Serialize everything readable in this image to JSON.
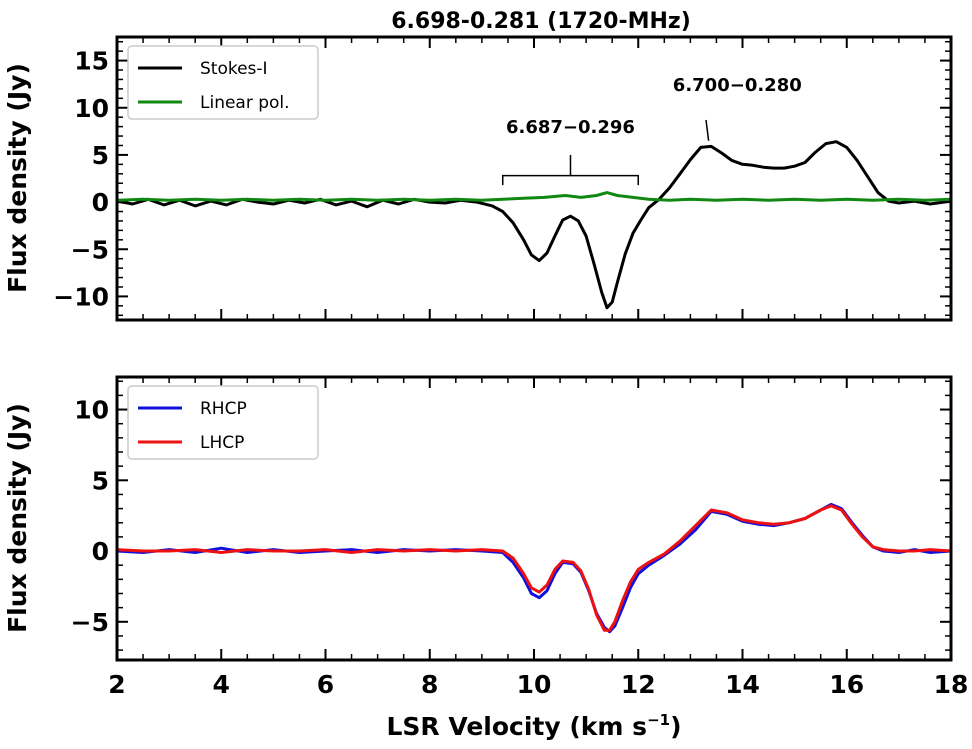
{
  "figure": {
    "title": "6.698-0.281 (1720-MHz)",
    "xlabel": "LSR Velocity (km s",
    "xlabel_sup": "−1",
    "xlabel_end": ")"
  },
  "chart_data": [
    {
      "type": "line",
      "panel": "top",
      "ylabel": "Flux density (Jy)",
      "xlim": [
        2,
        18
      ],
      "ylim": [
        -12.5,
        17.5
      ],
      "xticks": [
        2,
        4,
        6,
        8,
        10,
        12,
        14,
        16,
        18
      ],
      "yticks": [
        -10,
        -5,
        0,
        5,
        10,
        15
      ],
      "ytick_labels": [
        "−10",
        "−5",
        "0",
        "5",
        "10",
        "15"
      ],
      "legend": "top-left",
      "series": [
        {
          "name": "Stokes-I",
          "color": "#000000",
          "x": [
            2.0,
            2.3,
            2.6,
            2.9,
            3.2,
            3.5,
            3.8,
            4.1,
            4.4,
            4.7,
            5.0,
            5.3,
            5.6,
            5.9,
            6.2,
            6.5,
            6.8,
            7.1,
            7.4,
            7.7,
            8.0,
            8.3,
            8.6,
            8.9,
            9.2,
            9.4,
            9.6,
            9.8,
            9.95,
            10.1,
            10.25,
            10.4,
            10.55,
            10.7,
            10.85,
            11.0,
            11.15,
            11.3,
            11.4,
            11.5,
            11.6,
            11.75,
            11.9,
            12.05,
            12.2,
            12.4,
            12.6,
            12.8,
            13.0,
            13.2,
            13.4,
            13.6,
            13.8,
            14.0,
            14.2,
            14.4,
            14.6,
            14.8,
            15.0,
            15.2,
            15.4,
            15.6,
            15.8,
            16.0,
            16.2,
            16.4,
            16.6,
            16.8,
            17.0,
            17.3,
            17.6,
            18.0
          ],
          "y": [
            0.1,
            -0.2,
            0.3,
            -0.3,
            0.2,
            -0.4,
            0.1,
            -0.3,
            0.3,
            0.0,
            -0.2,
            0.2,
            -0.1,
            0.3,
            -0.3,
            0.1,
            -0.5,
            0.2,
            -0.2,
            0.3,
            0.0,
            -0.1,
            0.2,
            0.0,
            -0.4,
            -1.0,
            -2.2,
            -4.0,
            -5.6,
            -6.2,
            -5.4,
            -3.6,
            -1.9,
            -1.5,
            -2.0,
            -3.6,
            -6.5,
            -9.6,
            -11.2,
            -10.6,
            -8.5,
            -5.5,
            -3.3,
            -1.9,
            -0.6,
            0.3,
            1.5,
            3.0,
            4.5,
            5.8,
            5.9,
            5.2,
            4.4,
            4.0,
            3.9,
            3.7,
            3.6,
            3.6,
            3.8,
            4.2,
            5.3,
            6.2,
            6.4,
            5.8,
            4.4,
            2.7,
            1.0,
            0.1,
            -0.1,
            0.1,
            -0.2,
            0.1
          ]
        },
        {
          "name": "Linear pol.",
          "color": "#118811",
          "x": [
            2.0,
            2.5,
            3.0,
            3.5,
            4.0,
            4.5,
            5.0,
            5.5,
            6.0,
            6.5,
            7.0,
            7.5,
            8.0,
            8.5,
            9.0,
            9.4,
            9.8,
            10.2,
            10.6,
            10.9,
            11.2,
            11.4,
            11.6,
            11.9,
            12.2,
            12.6,
            13.0,
            13.5,
            14.0,
            14.5,
            15.0,
            15.5,
            16.0,
            16.5,
            17.0,
            17.5,
            18.0
          ],
          "y": [
            0.2,
            0.3,
            0.2,
            0.3,
            0.2,
            0.3,
            0.2,
            0.3,
            0.2,
            0.3,
            0.2,
            0.3,
            0.2,
            0.3,
            0.2,
            0.3,
            0.4,
            0.5,
            0.7,
            0.5,
            0.7,
            1.0,
            0.7,
            0.5,
            0.3,
            0.2,
            0.3,
            0.2,
            0.3,
            0.2,
            0.3,
            0.2,
            0.3,
            0.2,
            0.3,
            0.2,
            0.3
          ]
        }
      ],
      "annotations": [
        {
          "text": "6.687−0.296",
          "x": 10.7,
          "y": 7.3,
          "bracket_x": [
            9.4,
            12.0
          ],
          "bracket_y": 1.8,
          "stem_top": 5.0
        },
        {
          "text": "6.700−0.280",
          "x": 13.9,
          "y": 11.8,
          "pointer_from": [
            13.3,
            8.7
          ],
          "pointer_to": [
            13.35,
            6.5
          ]
        }
      ]
    },
    {
      "type": "line",
      "panel": "bottom",
      "ylabel": "Flux density (Jy)",
      "xlim": [
        2,
        18
      ],
      "ylim": [
        -7.7,
        12.3
      ],
      "xticks": [
        2,
        4,
        6,
        8,
        10,
        12,
        14,
        16,
        18
      ],
      "xtick_labels": [
        "2",
        "4",
        "6",
        "8",
        "10",
        "12",
        "14",
        "16",
        "18"
      ],
      "yticks": [
        -5,
        0,
        5,
        10
      ],
      "ytick_labels": [
        "−5",
        "0",
        "5",
        "10"
      ],
      "legend": "top-left",
      "series": [
        {
          "name": "RHCP",
          "color": "#1111dd",
          "x": [
            2.0,
            2.5,
            3.0,
            3.5,
            4.0,
            4.5,
            5.0,
            5.5,
            6.0,
            6.5,
            7.0,
            7.5,
            8.0,
            8.5,
            9.0,
            9.4,
            9.6,
            9.8,
            9.95,
            10.1,
            10.25,
            10.4,
            10.55,
            10.75,
            10.9,
            11.05,
            11.2,
            11.35,
            11.45,
            11.55,
            11.7,
            11.85,
            12.0,
            12.2,
            12.5,
            12.8,
            13.1,
            13.4,
            13.7,
            14.0,
            14.3,
            14.6,
            14.9,
            15.2,
            15.5,
            15.7,
            15.9,
            16.1,
            16.3,
            16.5,
            16.7,
            17.0,
            17.3,
            17.6,
            18.0
          ],
          "y": [
            0.0,
            -0.1,
            0.1,
            -0.1,
            0.2,
            -0.1,
            0.1,
            -0.1,
            0.0,
            0.1,
            -0.1,
            0.1,
            0.0,
            0.1,
            0.0,
            -0.1,
            -0.8,
            -1.9,
            -3.0,
            -3.3,
            -2.8,
            -1.6,
            -0.8,
            -0.9,
            -1.5,
            -2.8,
            -4.4,
            -5.4,
            -5.7,
            -5.3,
            -4.0,
            -2.6,
            -1.6,
            -1.0,
            -0.3,
            0.5,
            1.5,
            2.8,
            2.6,
            2.1,
            1.9,
            1.8,
            2.0,
            2.3,
            2.9,
            3.3,
            3.0,
            2.0,
            1.1,
            0.3,
            0.0,
            -0.1,
            0.1,
            -0.1,
            0.0
          ]
        },
        {
          "name": "LHCP",
          "color": "#ee1111",
          "x": [
            2.0,
            2.5,
            3.0,
            3.5,
            4.0,
            4.5,
            5.0,
            5.5,
            6.0,
            6.5,
            7.0,
            7.5,
            8.0,
            8.5,
            9.0,
            9.4,
            9.6,
            9.8,
            9.95,
            10.1,
            10.25,
            10.4,
            10.55,
            10.75,
            10.9,
            11.05,
            11.2,
            11.35,
            11.45,
            11.55,
            11.7,
            11.85,
            12.0,
            12.2,
            12.5,
            12.8,
            13.1,
            13.4,
            13.7,
            14.0,
            14.3,
            14.6,
            14.9,
            15.2,
            15.5,
            15.7,
            15.9,
            16.1,
            16.3,
            16.5,
            16.7,
            17.0,
            17.3,
            17.6,
            18.0
          ],
          "y": [
            0.1,
            0.0,
            0.0,
            0.1,
            -0.1,
            0.1,
            0.0,
            0.0,
            0.1,
            -0.1,
            0.1,
            0.0,
            0.1,
            0.0,
            0.1,
            0.0,
            -0.5,
            -1.6,
            -2.6,
            -2.9,
            -2.4,
            -1.3,
            -0.7,
            -0.8,
            -1.4,
            -2.7,
            -4.5,
            -5.6,
            -5.6,
            -5.0,
            -3.5,
            -2.2,
            -1.3,
            -0.8,
            -0.2,
            0.7,
            1.8,
            2.9,
            2.7,
            2.2,
            2.0,
            1.9,
            2.0,
            2.3,
            2.9,
            3.2,
            2.9,
            1.9,
            1.0,
            0.3,
            0.1,
            0.0,
            0.0,
            0.1,
            0.0
          ]
        }
      ]
    }
  ]
}
